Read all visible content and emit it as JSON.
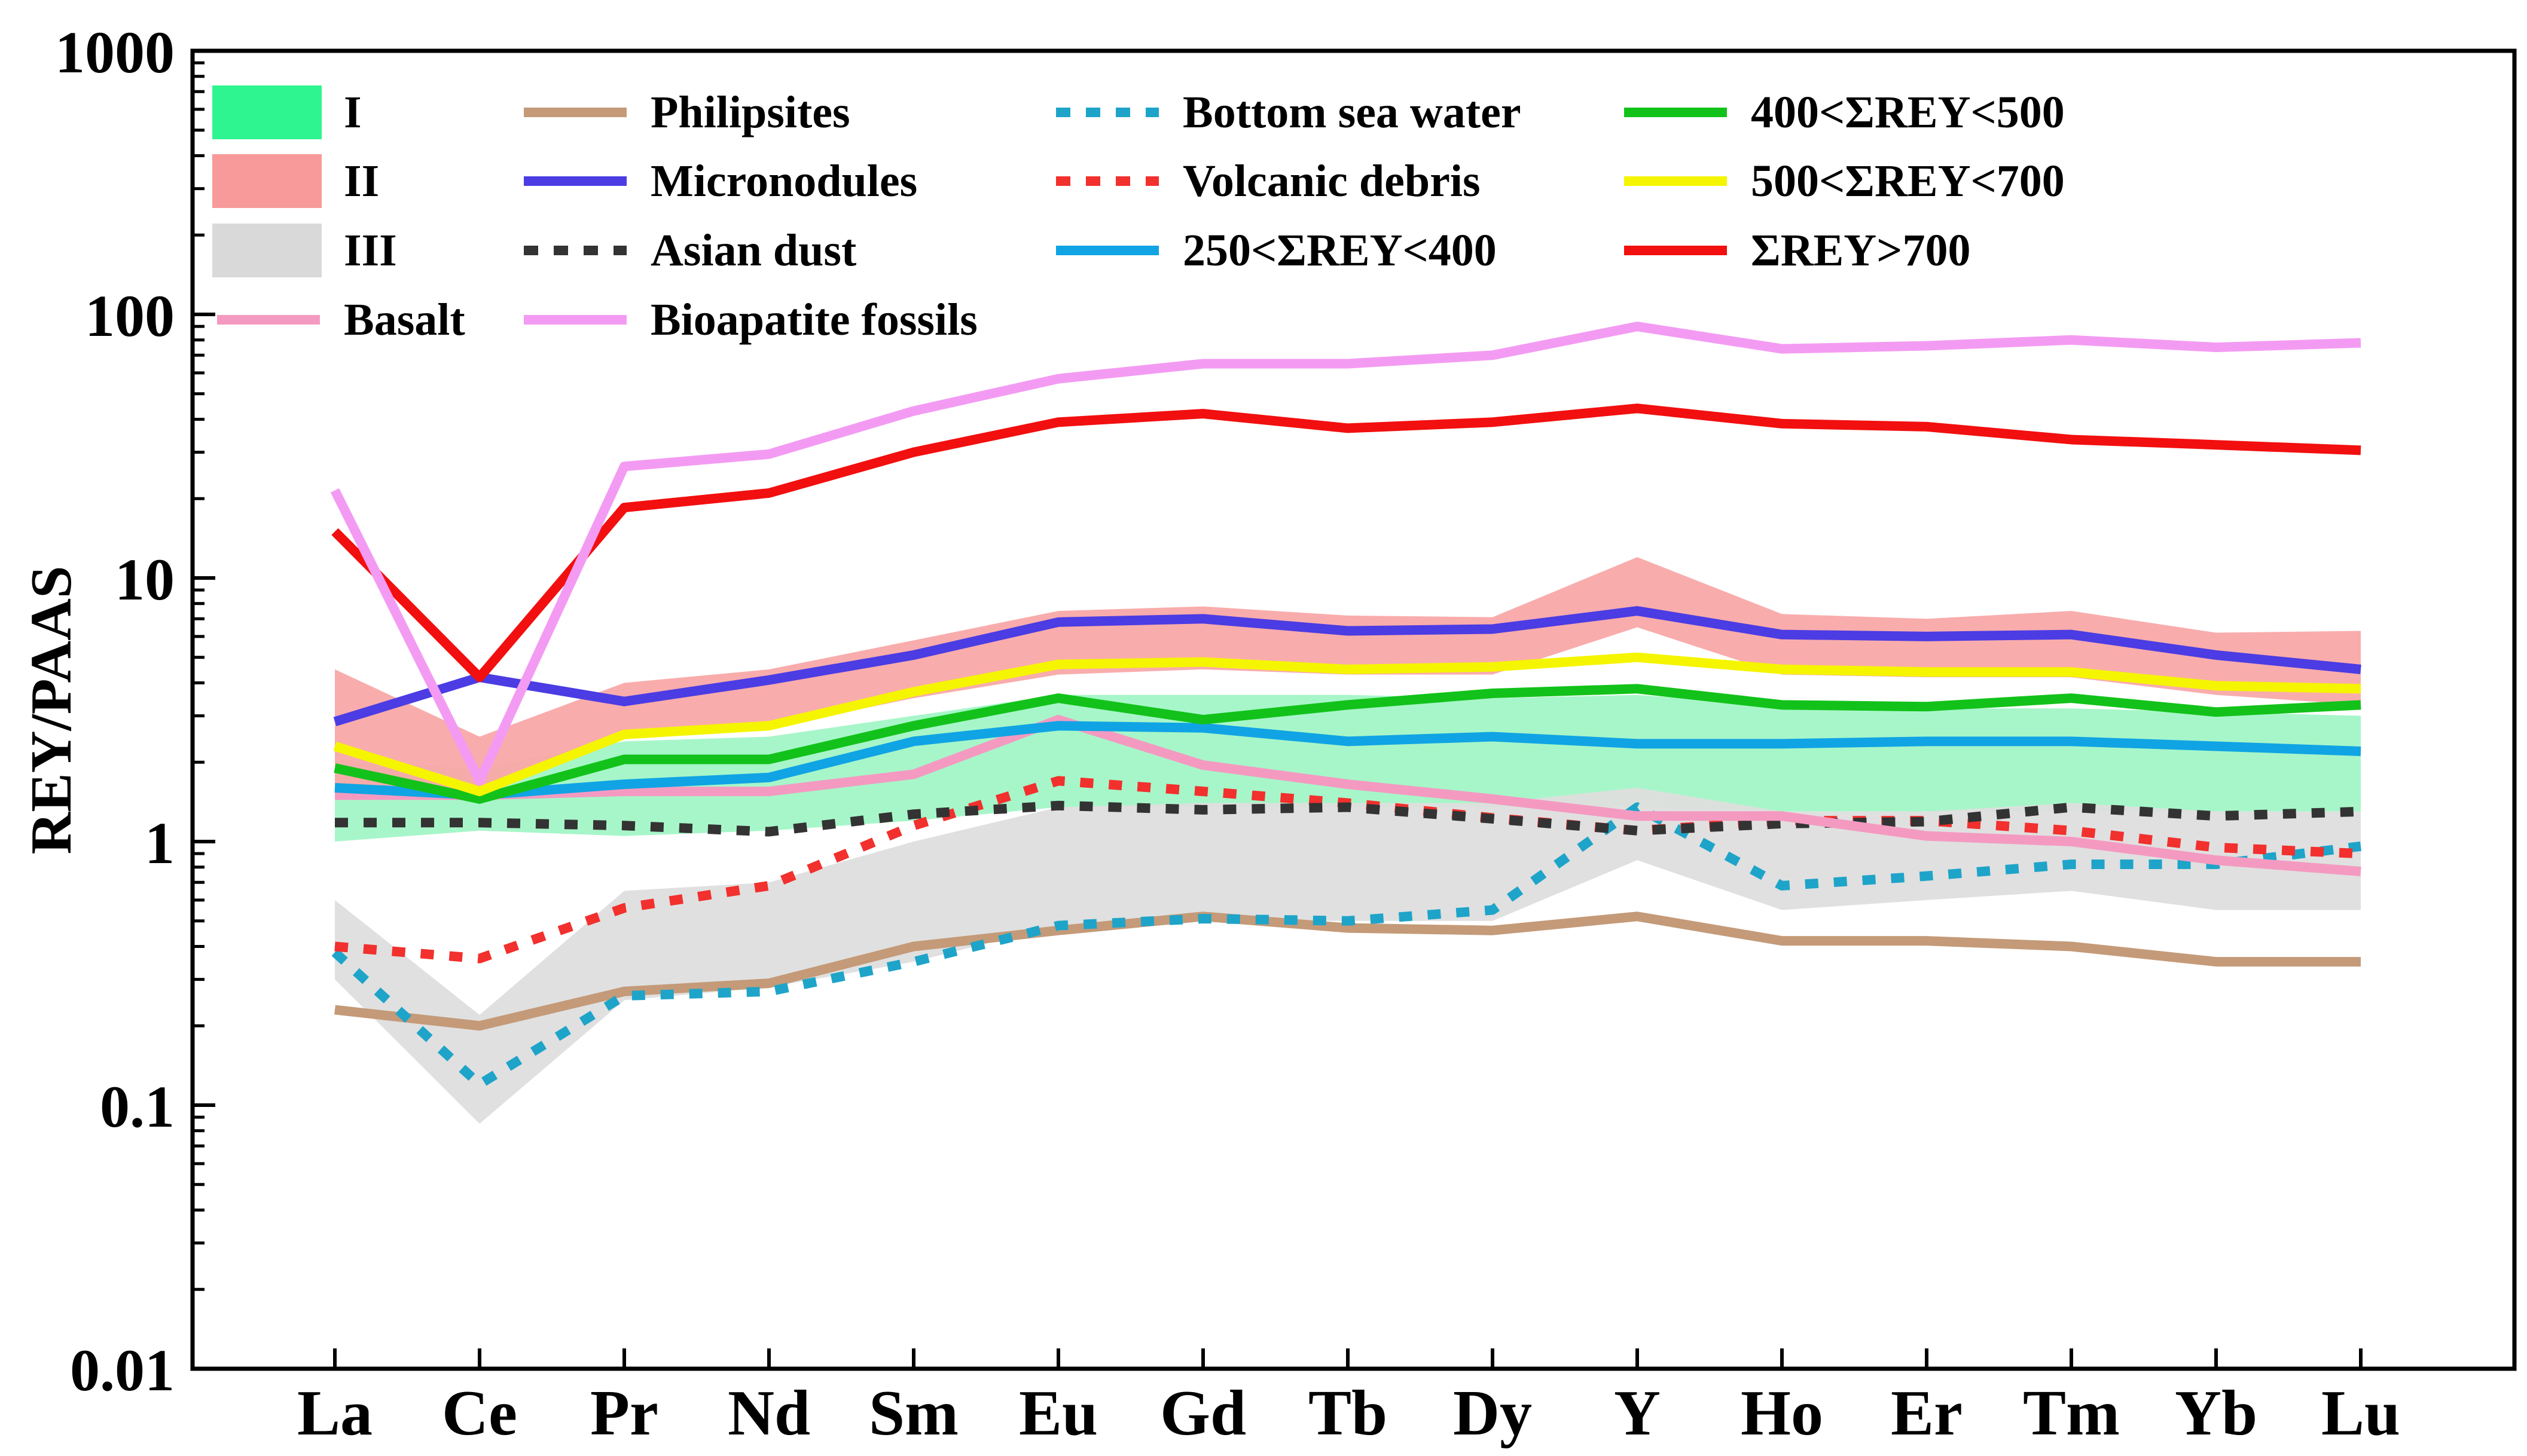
{
  "chart_data": {
    "type": "line",
    "title": "",
    "xlabel": "",
    "ylabel": "REY/PAAS",
    "yscale": "log",
    "ylim": [
      0.01,
      1000
    ],
    "y_ticks": [
      "0.01",
      "0.1",
      "1",
      "10",
      "100",
      "1000"
    ],
    "categories": [
      "La",
      "Ce",
      "Pr",
      "Nd",
      "Sm",
      "Eu",
      "Gd",
      "Tb",
      "Dy",
      "Y",
      "Ho",
      "Er",
      "Tm",
      "Yb",
      "Lu"
    ],
    "legend_position": "top",
    "bands": [
      {
        "name": "I",
        "color": "#2EF58F",
        "fill": "#A2F5C6",
        "low": [
          1.0,
          1.1,
          1.05,
          1.1,
          1.2,
          1.35,
          1.35,
          1.35,
          1.35,
          1.35,
          1.3,
          1.3,
          1.3,
          1.3,
          1.3
        ],
        "high": [
          2.0,
          1.9,
          2.4,
          2.5,
          3.0,
          3.6,
          3.6,
          3.6,
          3.5,
          3.6,
          3.3,
          3.2,
          3.2,
          3.1,
          3.0
        ]
      },
      {
        "name": "III",
        "color": "#D9D9D9",
        "fill": "#DEDEDE",
        "low": [
          0.3,
          0.085,
          0.25,
          0.28,
          0.35,
          0.48,
          0.5,
          0.5,
          0.5,
          0.85,
          0.55,
          0.6,
          0.65,
          0.55,
          0.55
        ],
        "high": [
          0.6,
          0.22,
          0.65,
          0.7,
          1.0,
          1.35,
          1.4,
          1.4,
          1.4,
          1.6,
          1.3,
          1.3,
          1.4,
          1.3,
          1.3
        ]
      },
      {
        "name": "II",
        "color": "#F79A99",
        "fill": "#F9A8A8",
        "low": [
          1.5,
          1.5,
          2.5,
          2.7,
          3.5,
          4.3,
          4.5,
          4.3,
          4.3,
          6.5,
          4.3,
          4.2,
          4.2,
          3.6,
          3.3
        ],
        "high": [
          4.5,
          2.5,
          4.0,
          4.5,
          5.8,
          7.5,
          7.8,
          7.2,
          7.1,
          12.0,
          7.3,
          7.0,
          7.5,
          6.2,
          6.3
        ]
      }
    ],
    "series": [
      {
        "name": "Philipsites",
        "color": "#C49A78",
        "dash": "solid",
        "values": [
          0.23,
          0.2,
          0.27,
          0.29,
          0.4,
          0.46,
          0.52,
          0.47,
          0.46,
          0.52,
          0.42,
          0.42,
          0.4,
          0.35,
          0.35
        ]
      },
      {
        "name": "Bottom sea  water",
        "color": "#1EA4C9",
        "dash": "dashed",
        "values": [
          0.38,
          0.12,
          0.26,
          0.27,
          0.35,
          0.48,
          0.51,
          0.5,
          0.55,
          1.35,
          0.68,
          0.74,
          0.82,
          0.82,
          0.96
        ]
      },
      {
        "name": "Volcanic debris",
        "color": "#F2302D",
        "dash": "dashed",
        "values": [
          0.4,
          0.36,
          0.56,
          0.68,
          1.15,
          1.7,
          1.55,
          1.4,
          1.23,
          1.1,
          1.2,
          1.2,
          1.1,
          0.95,
          0.9
        ]
      },
      {
        "name": "Asian dust",
        "color": "#333333",
        "dash": "dashed",
        "values": [
          1.18,
          1.18,
          1.15,
          1.09,
          1.27,
          1.37,
          1.32,
          1.35,
          1.22,
          1.1,
          1.17,
          1.19,
          1.35,
          1.25,
          1.3
        ]
      },
      {
        "name": "Basalt",
        "color": "#F49AC1",
        "dash": "solid",
        "values": [
          1.5,
          1.5,
          1.55,
          1.55,
          1.8,
          2.9,
          1.95,
          1.65,
          1.45,
          1.25,
          1.25,
          1.05,
          1.0,
          0.85,
          0.77
        ]
      },
      {
        "name": "250<ΣREY<400",
        "color": "#10A4E4",
        "dash": "solid",
        "values": [
          1.6,
          1.5,
          1.65,
          1.75,
          2.4,
          2.75,
          2.7,
          2.4,
          2.5,
          2.35,
          2.35,
          2.4,
          2.4,
          2.3,
          2.2
        ]
      },
      {
        "name": "400<ΣREY<500",
        "color": "#12C21A",
        "dash": "solid",
        "values": [
          1.9,
          1.45,
          2.05,
          2.05,
          2.75,
          3.5,
          2.9,
          3.3,
          3.65,
          3.8,
          3.3,
          3.25,
          3.5,
          3.1,
          3.3
        ]
      },
      {
        "name": "500<ΣREY<700",
        "color": "#F5F500",
        "dash": "solid",
        "values": [
          2.3,
          1.55,
          2.55,
          2.75,
          3.7,
          4.7,
          4.8,
          4.5,
          4.6,
          5.0,
          4.5,
          4.4,
          4.4,
          3.9,
          3.8
        ]
      },
      {
        "name": "Micronodules",
        "color": "#4B3CE3",
        "dash": "solid",
        "values": [
          2.85,
          4.2,
          3.4,
          4.1,
          5.1,
          6.8,
          7.0,
          6.3,
          6.4,
          7.5,
          6.1,
          6.0,
          6.1,
          5.1,
          4.5
        ]
      },
      {
        "name": "ΣREY>700",
        "color": "#F20F0F",
        "dash": "solid",
        "values": [
          15.0,
          4.2,
          18.5,
          21.0,
          30.0,
          39.0,
          42.0,
          37.0,
          39.0,
          44.0,
          38.5,
          37.5,
          33.5,
          32.0,
          30.5
        ]
      },
      {
        "name": "Bioapatite fossils",
        "color": "#F39BF3",
        "dash": "solid",
        "values": [
          21.5,
          1.7,
          26.5,
          29.5,
          43.0,
          57.0,
          65.0,
          65.0,
          70.0,
          90.0,
          74.0,
          76.0,
          80.0,
          75.0,
          78.0
        ]
      }
    ],
    "legend": [
      {
        "label": "I",
        "kind": "band",
        "color": "#2EF58F"
      },
      {
        "label": "II",
        "kind": "band",
        "color": "#F79A99"
      },
      {
        "label": "III",
        "kind": "band",
        "color": "#D9D9D9"
      },
      {
        "label": "Basalt",
        "kind": "line",
        "color": "#F49AC1",
        "dash": "solid"
      },
      {
        "label": "Philipsites",
        "kind": "line",
        "color": "#C49A78",
        "dash": "solid"
      },
      {
        "label": "Micronodules",
        "kind": "line",
        "color": "#4B3CE3",
        "dash": "solid"
      },
      {
        "label": "Asian dust",
        "kind": "line",
        "color": "#333333",
        "dash": "dashed"
      },
      {
        "label": "Bioapatite fossils",
        "kind": "line",
        "color": "#F39BF3",
        "dash": "solid"
      },
      {
        "label": "Bottom sea  water",
        "kind": "line",
        "color": "#1EA4C9",
        "dash": "dashed"
      },
      {
        "label": "Volcanic debris",
        "kind": "line",
        "color": "#F2302D",
        "dash": "dashed"
      },
      {
        "label": "250<ΣREY<400",
        "kind": "line",
        "color": "#10A4E4",
        "dash": "solid"
      },
      {
        "label": "400<ΣREY<500",
        "kind": "line",
        "color": "#12C21A",
        "dash": "solid"
      },
      {
        "label": "500<ΣREY<700",
        "kind": "line",
        "color": "#F5F500",
        "dash": "solid"
      },
      {
        "label": "ΣREY>700",
        "kind": "line",
        "color": "#F20F0F",
        "dash": "solid"
      }
    ]
  }
}
